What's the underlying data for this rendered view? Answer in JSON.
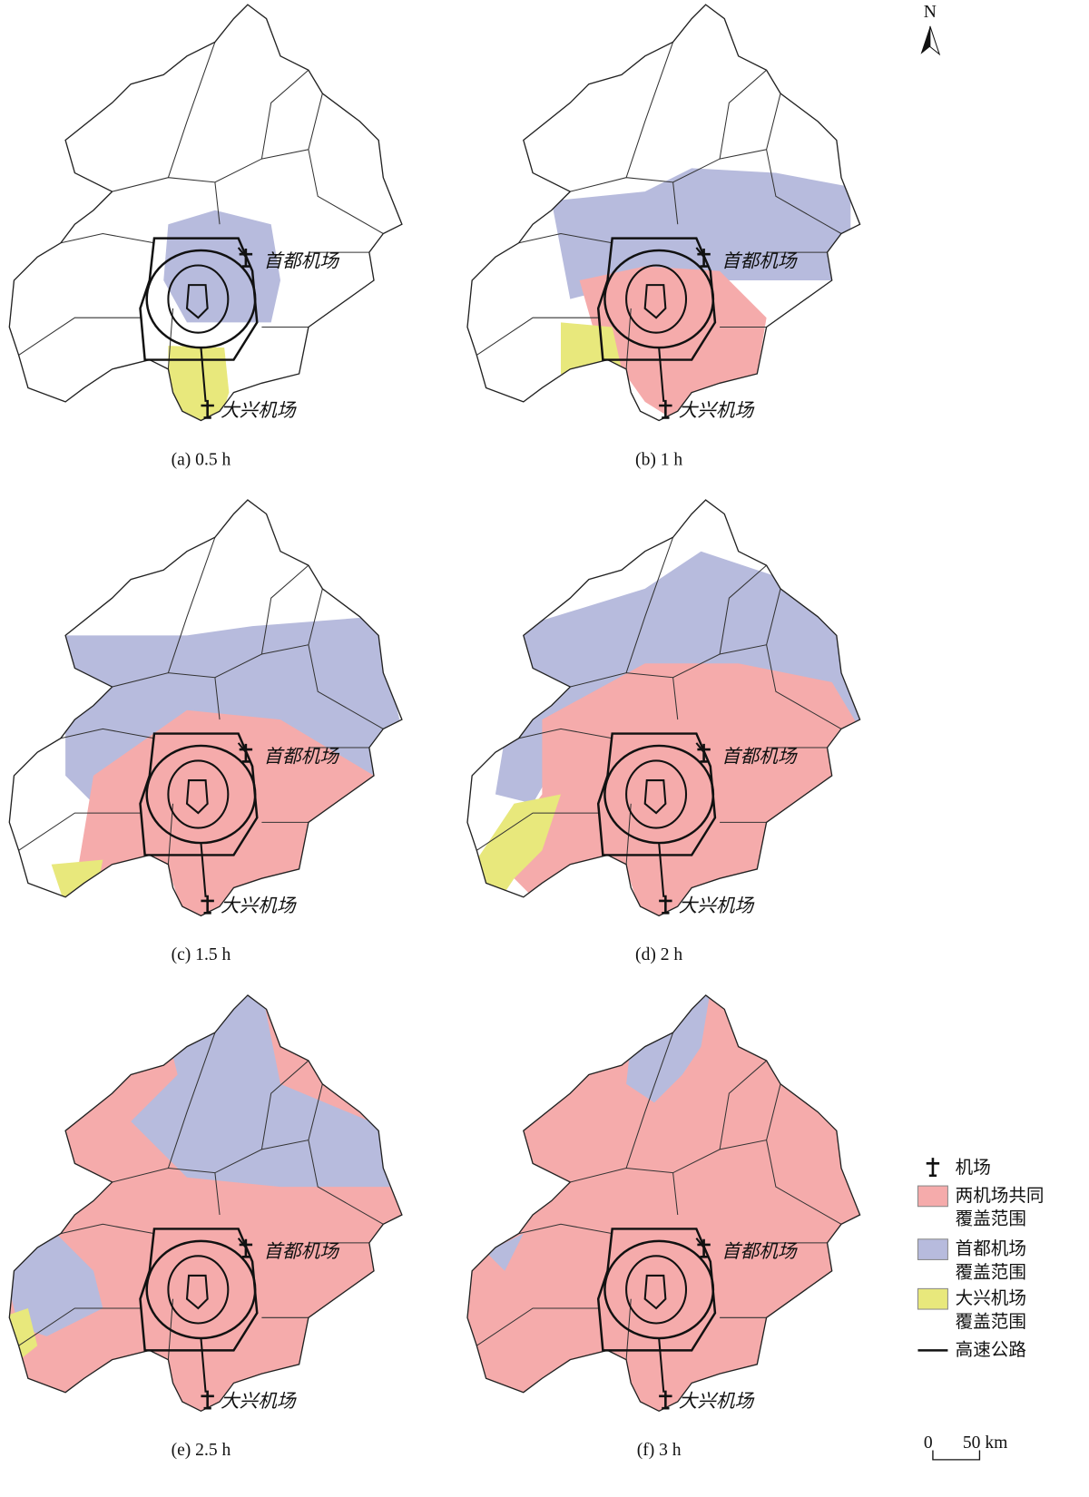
{
  "north": "N",
  "panels": [
    {
      "caption": "(a) 0.5 h",
      "capital": "首都机场",
      "daxing": "大兴机场"
    },
    {
      "caption": "(b) 1 h",
      "capital": "首都机场",
      "daxing": "大兴机场"
    },
    {
      "caption": "(c) 1.5 h",
      "capital": "首都机场",
      "daxing": "大兴机场"
    },
    {
      "caption": "(d) 2 h",
      "capital": "首都机场",
      "daxing": "大兴机场"
    },
    {
      "caption": "(e) 2.5 h",
      "capital": "首都机场",
      "daxing": "大兴机场"
    },
    {
      "caption": "(f) 3 h",
      "capital": "首都机场",
      "daxing": "大兴机场"
    }
  ],
  "legend": [
    {
      "lines": [
        "机场"
      ]
    },
    {
      "lines": [
        "两机场共同",
        "覆盖范围"
      ],
      "color": "#f5abab"
    },
    {
      "lines": [
        "首都机场",
        "覆盖范围"
      ],
      "color": "#b7bbdd"
    },
    {
      "lines": [
        "大兴机场",
        "覆盖范围"
      ],
      "color": "#e8e87c"
    },
    {
      "lines": [
        "高速公路"
      ]
    }
  ],
  "scale": {
    "start": "0",
    "end": "50 km"
  }
}
